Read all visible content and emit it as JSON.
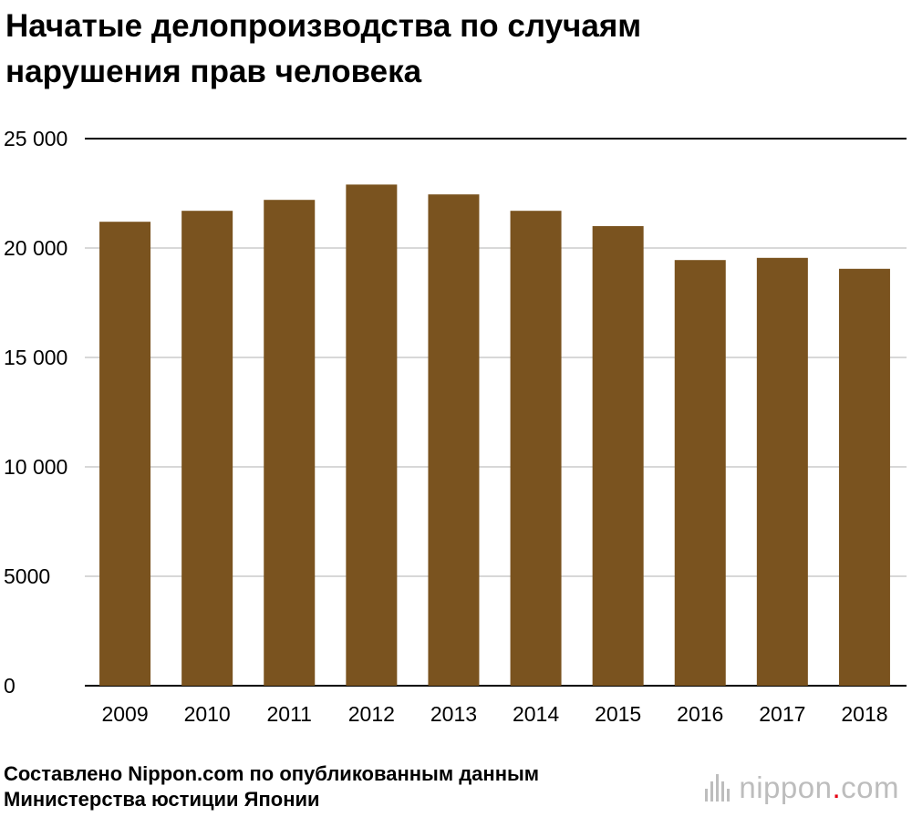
{
  "title_lines": [
    "Начатые делопроизводства по случаям",
    "нарушения прав человека"
  ],
  "source_lines": [
    "Составлено Nippon.com по опубликованным данным",
    "Министерства юстиции Японии"
  ],
  "logo": {
    "name": "nippon",
    "dot": ".",
    "suffix": "com",
    "dot_color": "#e60012",
    "text_color": "#bdbdbd"
  },
  "colors": {
    "bar": "#7a531f",
    "grid": "#cccccc",
    "top_line": "#000000"
  },
  "chart_data": {
    "type": "bar",
    "title": "Начатые делопроизводства по случаям нарушения прав человека",
    "categories": [
      "2009",
      "2010",
      "2011",
      "2012",
      "2013",
      "2014",
      "2015",
      "2016",
      "2017",
      "2018"
    ],
    "values": [
      21200,
      21700,
      22200,
      22900,
      22450,
      21700,
      21000,
      19450,
      19550,
      19050
    ],
    "ylim": [
      0,
      25000
    ],
    "yticks": [
      0,
      5000,
      10000,
      15000,
      20000,
      25000
    ],
    "ytick_labels": [
      "0",
      "5000",
      "10 000",
      "15 000",
      "20 000",
      "25 000"
    ],
    "xlabel": "",
    "ylabel": "",
    "grid": true,
    "legend": "none"
  }
}
